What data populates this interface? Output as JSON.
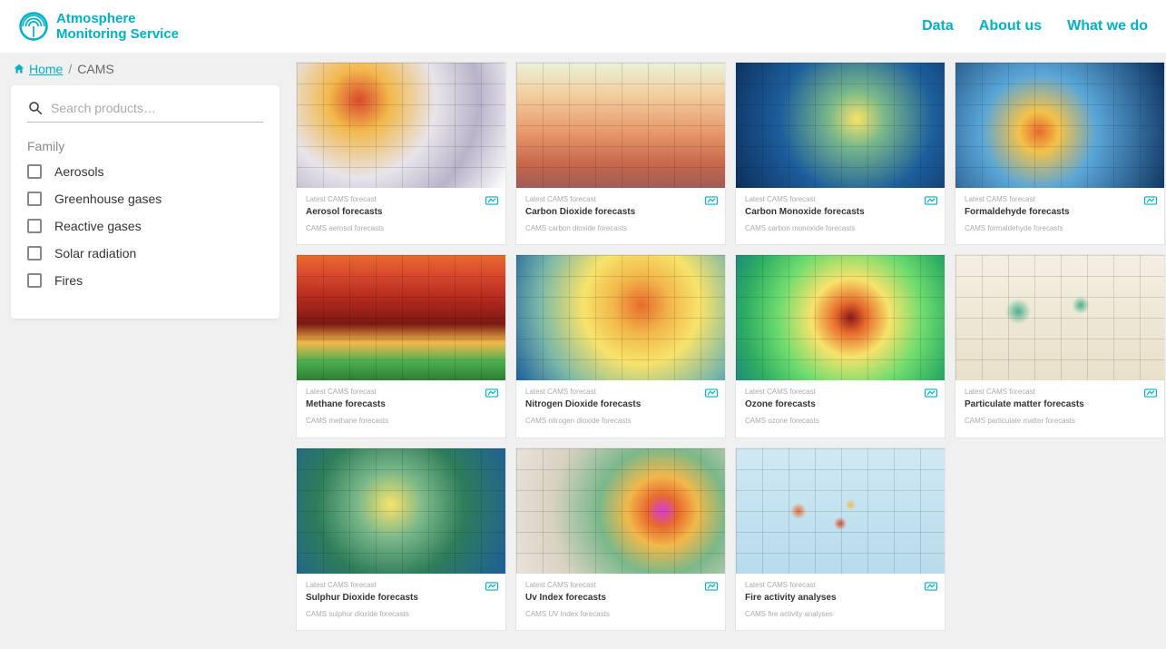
{
  "brand": {
    "line1": "Atmosphere",
    "line2": "Monitoring Service",
    "color": "#00b1ca"
  },
  "nav": [
    {
      "label": "Data"
    },
    {
      "label": "About us"
    },
    {
      "label": "What we do"
    }
  ],
  "breadcrumb": {
    "home": "Home",
    "current": "CAMS"
  },
  "search": {
    "placeholder": "Search products…"
  },
  "filters": {
    "heading": "Family",
    "items": [
      {
        "label": "Aerosols"
      },
      {
        "label": "Greenhouse gases"
      },
      {
        "label": "Reactive gases"
      },
      {
        "label": "Solar radiation"
      },
      {
        "label": "Fires"
      }
    ]
  },
  "kicker": "Latest CAMS forecast",
  "cards": [
    {
      "title": "Aerosol forecasts",
      "desc": "CAMS aerosol forecasts",
      "thumb": "th-aerosol",
      "name": "card-aerosol"
    },
    {
      "title": "Carbon Dioxide forecasts",
      "desc": "CAMS carbon dioxide forecasts",
      "thumb": "th-co2",
      "name": "card-co2"
    },
    {
      "title": "Carbon Monoxide forecasts",
      "desc": "CAMS carbon monoxide forecasts",
      "thumb": "th-co",
      "name": "card-co"
    },
    {
      "title": "Formaldehyde forecasts",
      "desc": "CAMS formaldehyde forecasts",
      "thumb": "th-formaldehyde",
      "name": "card-formaldehyde"
    },
    {
      "title": "Methane forecasts",
      "desc": "CAMS methane forecasts",
      "thumb": "th-methane",
      "name": "card-methane"
    },
    {
      "title": "Nitrogen Dioxide forecasts",
      "desc": "CAMS nitrogen dioxide forecasts",
      "thumb": "th-no2",
      "name": "card-no2"
    },
    {
      "title": "Ozone forecasts",
      "desc": "CAMS ozone forecasts",
      "thumb": "th-ozone",
      "name": "card-ozone"
    },
    {
      "title": "Particulate matter forecasts",
      "desc": "CAMS particulate matter forecasts",
      "thumb": "th-pm",
      "name": "card-pm"
    },
    {
      "title": "Sulphur Dioxide forecasts",
      "desc": "CAMS sulphur dioxide forecasts",
      "thumb": "th-so2",
      "name": "card-so2"
    },
    {
      "title": "Uv Index forecasts",
      "desc": "CAMS UV Index forecasts",
      "thumb": "th-uv",
      "name": "card-uv"
    },
    {
      "title": "Fire activity analyses",
      "desc": "CAMS fire activity analyses",
      "thumb": "th-fire",
      "name": "card-fire"
    }
  ],
  "colors": {
    "accent": "#00b1ca",
    "page_bg": "#f0f0f0",
    "card_border": "#e5e5e5",
    "muted_text": "#aaaaaa"
  }
}
